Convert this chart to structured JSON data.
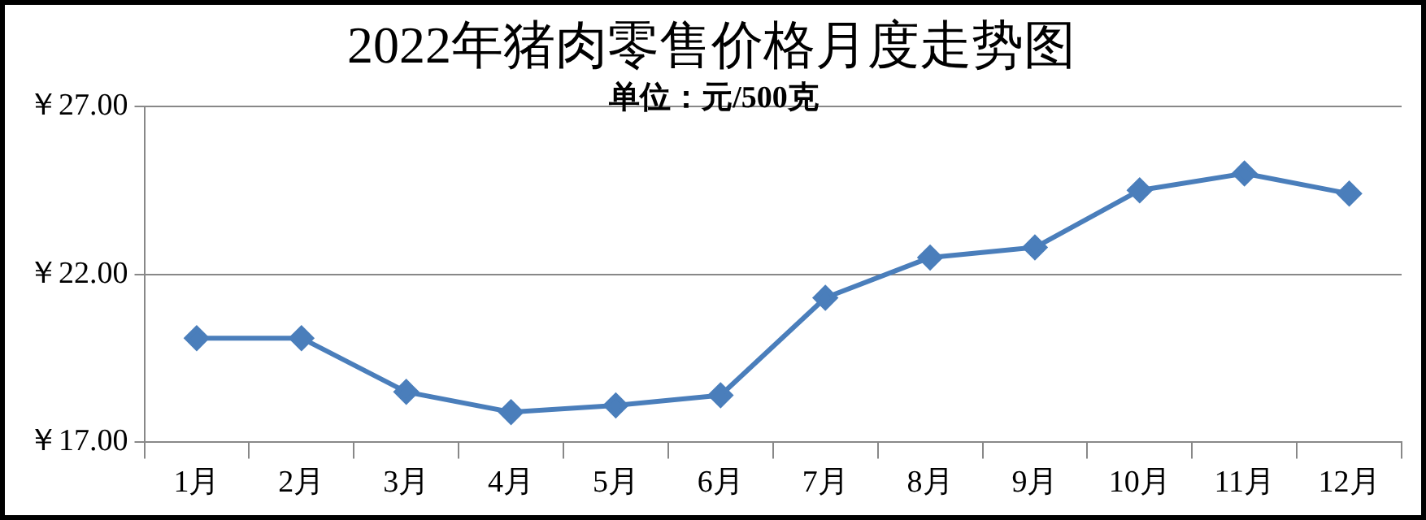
{
  "chart_data": {
    "type": "line",
    "title": "2022年猪肉零售价格月度走势图",
    "subtitle": "单位：元/500克",
    "categories": [
      "1月",
      "2月",
      "3月",
      "4月",
      "5月",
      "6月",
      "7月",
      "8月",
      "9月",
      "10月",
      "11月",
      "12月"
    ],
    "series": [
      {
        "color": "#4a7ebb",
        "values": [
          20.1,
          20.1,
          18.5,
          17.9,
          18.1,
          18.4,
          21.3,
          22.5,
          22.8,
          24.5,
          25.0,
          24.4
        ]
      }
    ],
    "ylim": [
      17,
      27
    ],
    "yticks": [
      {
        "value": 17,
        "label": "￥17.00"
      },
      {
        "value": 22,
        "label": "￥22.00"
      },
      {
        "value": 27,
        "label": "￥27.00"
      }
    ],
    "grid": "y",
    "legend": false,
    "marker": "diamond",
    "line_style": "solid"
  }
}
